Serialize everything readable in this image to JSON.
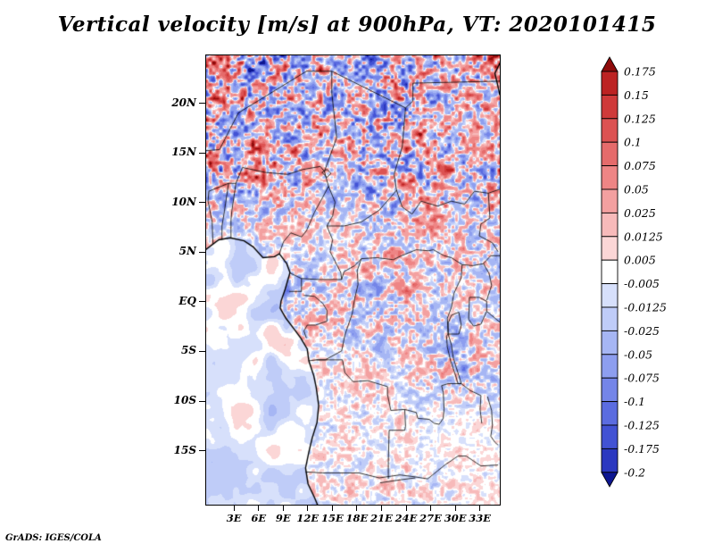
{
  "header": {
    "title": "Vertical velocity [m/s] at 900hPa, VT: 2020101415"
  },
  "footer": {
    "credit": "GrADS: IGES/COLA"
  },
  "axes": {
    "y_tick_labels": [
      "20N",
      "15N",
      "10N",
      "5N",
      "EQ",
      "5S",
      "10S",
      "15S"
    ],
    "y_tick_deg": [
      20,
      15,
      10,
      5,
      0,
      -5,
      -10,
      -15
    ],
    "x_tick_labels": [
      "3E",
      "6E",
      "9E",
      "12E",
      "15E",
      "18E",
      "21E",
      "24E",
      "27E",
      "30E",
      "33E"
    ],
    "x_tick_deg": [
      3,
      6,
      9,
      12,
      15,
      18,
      21,
      24,
      27,
      30,
      33
    ]
  },
  "chart_data": {
    "type": "heatmap",
    "title": "Vertical velocity [m/s] at 900hPa, VT: 2020101415",
    "variable": "Vertical velocity",
    "units": "m/s",
    "pressure_level": "900hPa",
    "valid_time": "2020101415",
    "lon_range": [
      -0.33,
      35.5
    ],
    "lat_range": [
      -20.5,
      24.8
    ],
    "contour_levels": [
      0.175,
      0.15,
      0.125,
      0.1,
      0.075,
      0.05,
      0.025,
      0.0125,
      0.005,
      -0.005,
      -0.0125,
      -0.025,
      -0.05,
      -0.075,
      -0.1,
      -0.125,
      -0.175,
      -0.2
    ],
    "colorbar_labels": [
      "0.175",
      "0.15",
      "0.125",
      "0.1",
      "0.075",
      "0.05",
      "0.025",
      "0.0125",
      "0.005",
      "-0.005",
      "-0.0125",
      "-0.025",
      "-0.05",
      "-0.075",
      "-0.1",
      "-0.125",
      "-0.175",
      "-0.2"
    ],
    "palette": [
      "#8f0b0b",
      "#bc2323",
      "#cf3a3a",
      "#dc5252",
      "#e56b6b",
      "#ee8585",
      "#f3a0a0",
      "#f7baba",
      "#fbd6d6",
      "#ffffff",
      "#d7e0fb",
      "#bfccf8",
      "#a6b6f4",
      "#8d9eef",
      "#7485e8",
      "#5b6ce0",
      "#4252d4",
      "#2b38c0",
      "#0d1691"
    ],
    "legend_position": "right",
    "grid": false,
    "field_description": "Fine-grained alternating positive (red) and negative (blue) vertical-velocity cells over central Africa; strongest amplitude north of ~8N (Sahel), moderate speckle near the equator, weak pale field over the southern interior, and smooth weak negative values over the Atlantic ocean area southwest of the coastline."
  }
}
